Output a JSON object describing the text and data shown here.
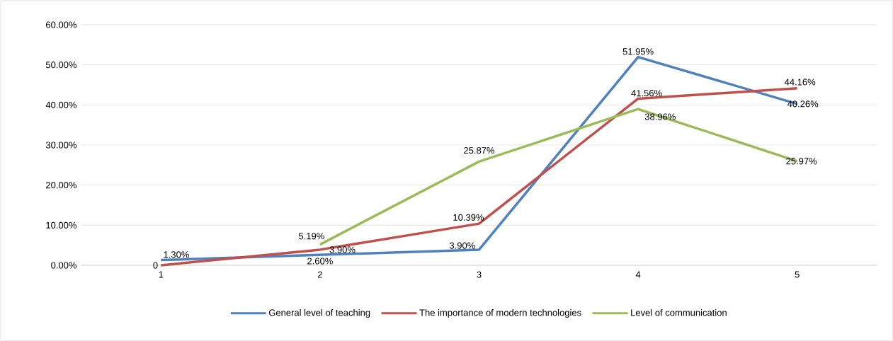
{
  "chart_data": {
    "type": "line",
    "categories": [
      "1",
      "2",
      "3",
      "4",
      "5"
    ],
    "ylim": [
      0,
      60
    ],
    "yticks": [
      {
        "value": 0,
        "label": "0.00%"
      },
      {
        "value": 10,
        "label": "10.00%"
      },
      {
        "value": 20,
        "label": "20.00%"
      },
      {
        "value": 30,
        "label": "30.00%"
      },
      {
        "value": 40,
        "label": "40.00%"
      },
      {
        "value": 50,
        "label": "50.00%"
      },
      {
        "value": 60,
        "label": "60.00%"
      }
    ],
    "grid": "y",
    "legend": "bottom",
    "marker": "none",
    "line_style": "solid",
    "series": [
      {
        "name": "General level of teaching",
        "color": "#4f81bd",
        "values": [
          1.3,
          2.6,
          3.9,
          51.95,
          40.26
        ],
        "value_labels": [
          "1.30%",
          "2.60%",
          "3.90%",
          "51.95%",
          "40.26%"
        ]
      },
      {
        "name": "The importance of modern technologies",
        "color": "#c0504d",
        "values": [
          0,
          3.9,
          10.39,
          41.56,
          44.16
        ],
        "value_labels": [
          "0",
          "3.90%",
          "10.39%",
          "41.56%",
          "44.16%"
        ]
      },
      {
        "name": "Level of communication",
        "color": "#9bbb59",
        "values": [
          null,
          5.19,
          25.87,
          38.96,
          25.97
        ],
        "value_labels": [
          null,
          "5.19%",
          "25.87%",
          "38.96%",
          "25.97%"
        ]
      }
    ]
  }
}
